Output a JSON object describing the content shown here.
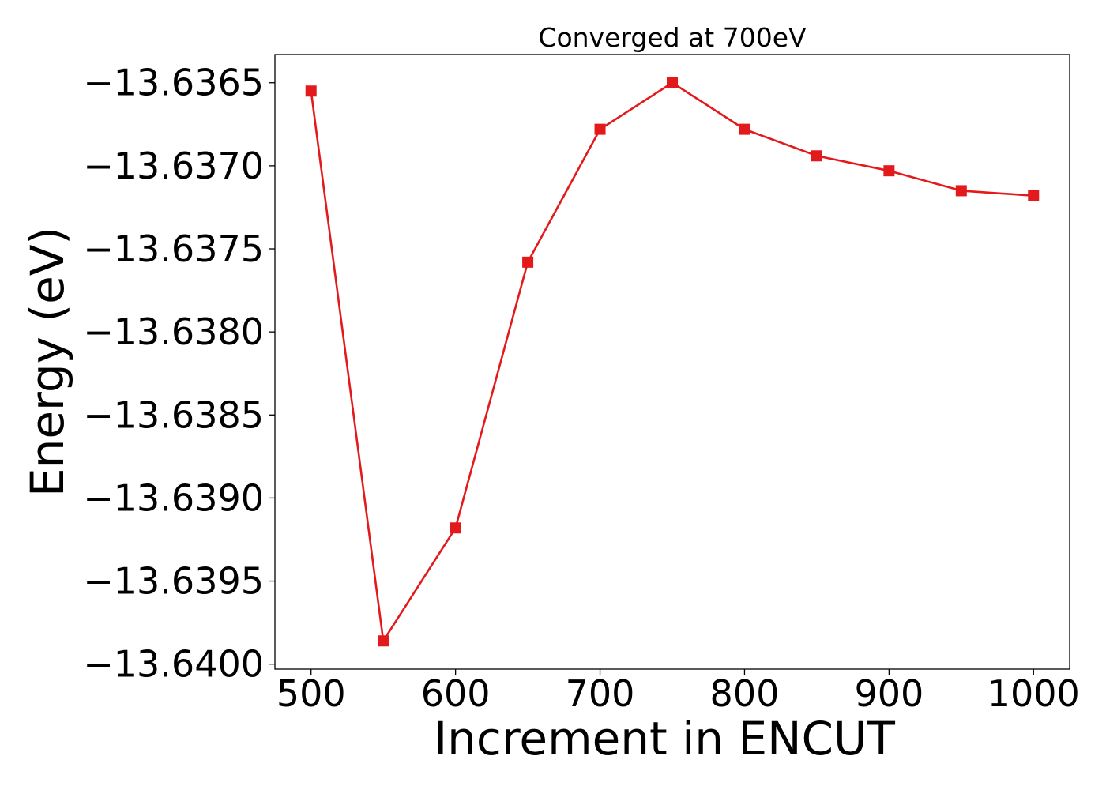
{
  "chart_data": {
    "type": "line",
    "title": "Converged at 700eV",
    "xlabel": "Increment in ENCUT",
    "ylabel": "Energy (eV)",
    "xlim": [
      475,
      1025
    ],
    "ylim": [
      -13.64003,
      -13.63633
    ],
    "x_ticks": [
      500,
      600,
      700,
      800,
      900,
      1000
    ],
    "x_tick_labels": [
      "500",
      "600",
      "700",
      "800",
      "900",
      "1000"
    ],
    "y_ticks": [
      -13.6365,
      -13.637,
      -13.6375,
      -13.638,
      -13.6385,
      -13.639,
      -13.6395,
      -13.64
    ],
    "y_tick_labels": [
      "−13.6365",
      "−13.6370",
      "−13.6375",
      "−13.6380",
      "−13.6385",
      "−13.6390",
      "−13.6395",
      "−13.6400"
    ],
    "grid": false,
    "marker": "square",
    "series_color": "#e31a1c",
    "x": [
      500,
      550,
      600,
      650,
      700,
      750,
      800,
      850,
      900,
      950,
      1000
    ],
    "series": [
      {
        "values": [
          -13.63655,
          -13.63986,
          -13.63918,
          -13.63758,
          -13.63678,
          -13.6365,
          -13.63678,
          -13.63694,
          -13.63703,
          -13.63715,
          -13.63718
        ]
      }
    ]
  }
}
